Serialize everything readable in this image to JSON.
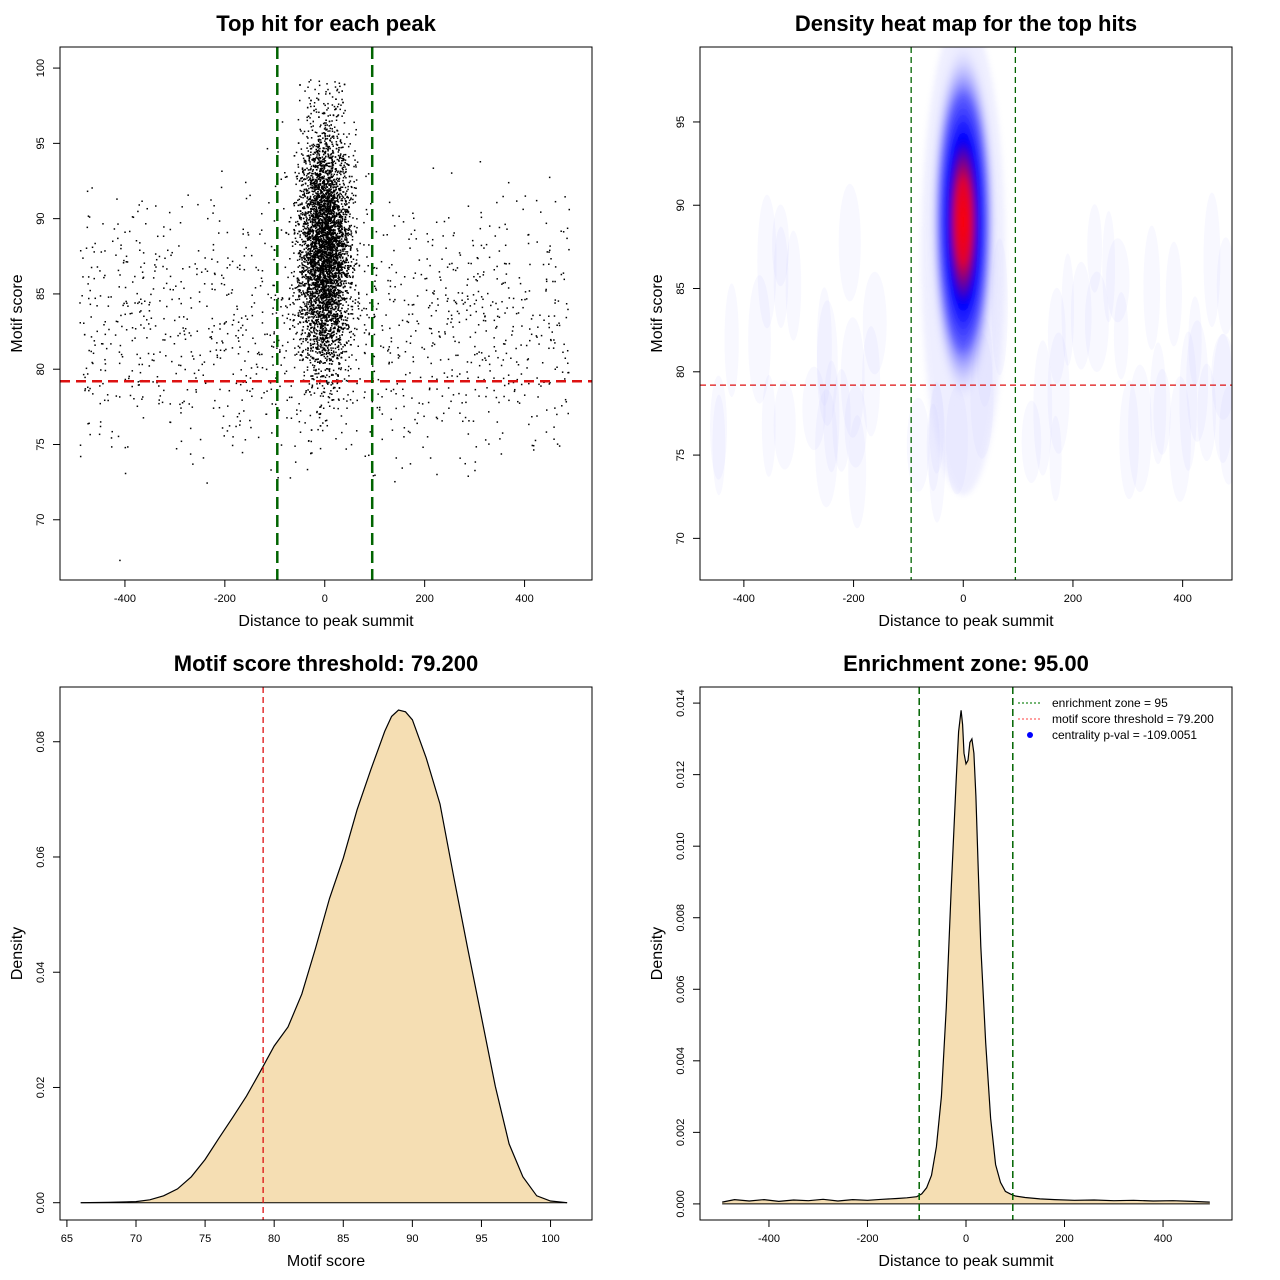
{
  "chart_data": [
    {
      "id": "scatter",
      "type": "scatter",
      "title": "Top hit for each peak",
      "xlabel": "Distance to peak summit",
      "ylabel": "Motif score",
      "xlim": [
        -530,
        535
      ],
      "ylim": [
        66,
        101.4
      ],
      "xticks": [
        -400,
        -200,
        0,
        200,
        400
      ],
      "yticks": [
        70,
        75,
        80,
        85,
        90,
        95,
        100
      ],
      "points_description": "dense cloud of top hits centred at distance 0 (sd ~25) with motif scores 73-99; sparse background hits spread uniformly across -490..490 with scores 67-97",
      "central_cluster": {
        "x_mean": 0,
        "x_sd": 25,
        "y_mean": 88,
        "y_sd": 4
      },
      "background": {
        "x_range": [
          -490,
          490
        ],
        "y_range": [
          70,
          96
        ]
      },
      "hline": {
        "y": 79.2,
        "color": "#dd1111"
      },
      "vlines": [
        {
          "x": -95,
          "color": "#006400"
        },
        {
          "x": 95,
          "color": "#006400"
        }
      ],
      "grid": false
    },
    {
      "id": "heatmap",
      "type": "heatmap",
      "title": "Density heat map for the top hits",
      "xlabel": "Distance to peak summit",
      "ylabel": "Motif score",
      "xlim": [
        -480,
        490
      ],
      "ylim": [
        67.5,
        99.5
      ],
      "xticks": [
        -400,
        -200,
        0,
        200,
        400
      ],
      "yticks": [
        70,
        75,
        80,
        85,
        90,
        95
      ],
      "density_peak": {
        "x": 0,
        "y": 89
      },
      "color_scale": [
        "#ffffff",
        "#0000ff",
        "#ff0000"
      ],
      "hline": {
        "y": 79.2,
        "color": "#dd1111"
      },
      "vlines": [
        {
          "x": -95,
          "color": "#006400"
        },
        {
          "x": 95,
          "color": "#006400"
        }
      ],
      "grid": false
    },
    {
      "id": "score_density",
      "type": "area",
      "title": "Motif score threshold: 79.200",
      "xlabel": "Motif score",
      "ylabel": "Density",
      "xlim": [
        64.5,
        103
      ],
      "ylim": [
        -0.003,
        0.0895
      ],
      "xticks": [
        65,
        70,
        75,
        80,
        85,
        90,
        95,
        100
      ],
      "yticks": [
        0.0,
        0.02,
        0.04,
        0.06,
        0.08
      ],
      "ytick_labels": [
        "0.00",
        "0.02",
        "0.04",
        "0.06",
        "0.08"
      ],
      "x": [
        66,
        68,
        70,
        71,
        72,
        73,
        74,
        75,
        76,
        77,
        78,
        79,
        80,
        81,
        82,
        83,
        84,
        85,
        86,
        87,
        88,
        88.5,
        89,
        89.5,
        90,
        91,
        92,
        93,
        94,
        95,
        96,
        97,
        98,
        99,
        100,
        101.2
      ],
      "y": [
        0.0,
        5e-05,
        0.0002,
        0.0005,
        0.0012,
        0.0024,
        0.0045,
        0.0075,
        0.0112,
        0.0148,
        0.0185,
        0.0228,
        0.0272,
        0.0305,
        0.0362,
        0.0442,
        0.0528,
        0.0598,
        0.0682,
        0.0752,
        0.0818,
        0.0844,
        0.0855,
        0.0852,
        0.0838,
        0.0772,
        0.0692,
        0.0565,
        0.0442,
        0.0322,
        0.0202,
        0.0102,
        0.0045,
        0.0012,
        0.0003,
        0.0
      ],
      "fill": "#f5deb3",
      "vline": {
        "x": 79.2,
        "color": "#dd1111"
      },
      "grid": false
    },
    {
      "id": "distance_density",
      "type": "area",
      "title": "Enrichment zone: 95.00",
      "xlabel": "Distance to peak summit",
      "ylabel": "Density",
      "xlim": [
        -540,
        540
      ],
      "ylim": [
        -0.00045,
        0.01445
      ],
      "xticks": [
        -400,
        -200,
        0,
        200,
        400
      ],
      "yticks": [
        0.0,
        0.002,
        0.004,
        0.006,
        0.008,
        0.01,
        0.012,
        0.014
      ],
      "ytick_labels": [
        "0.000",
        "0.002",
        "0.004",
        "0.006",
        "0.008",
        "0.010",
        "0.012",
        "0.014"
      ],
      "x": [
        -495,
        -470,
        -440,
        -410,
        -380,
        -350,
        -320,
        -290,
        -260,
        -230,
        -200,
        -170,
        -140,
        -120,
        -100,
        -90,
        -80,
        -70,
        -60,
        -50,
        -40,
        -30,
        -20,
        -15,
        -10,
        -7,
        -4,
        0,
        4,
        8,
        12,
        16,
        20,
        25,
        30,
        40,
        50,
        60,
        70,
        80,
        90,
        100,
        120,
        150,
        180,
        220,
        260,
        300,
        340,
        380,
        420,
        460,
        495
      ],
      "y": [
        5e-05,
        0.00012,
        8e-05,
        0.00012,
        7e-05,
        0.00011,
        9e-05,
        0.00013,
        8e-05,
        0.00012,
        0.0001,
        0.00013,
        0.00015,
        0.00017,
        0.0002,
        0.00028,
        0.00045,
        0.0008,
        0.0016,
        0.003,
        0.0055,
        0.0088,
        0.0118,
        0.0132,
        0.0138,
        0.0134,
        0.0126,
        0.0123,
        0.0124,
        0.0129,
        0.013,
        0.0126,
        0.0114,
        0.0093,
        0.0072,
        0.0045,
        0.0024,
        0.0011,
        0.0006,
        0.00035,
        0.00028,
        0.00022,
        0.00018,
        0.00014,
        0.00012,
        0.0001,
        0.00011,
        9e-05,
        0.0001,
        8e-05,
        9e-05,
        7e-05,
        5e-05
      ],
      "fill": "#f5deb3",
      "vlines": [
        {
          "x": -95,
          "color": "#006400"
        },
        {
          "x": 95,
          "color": "#006400"
        }
      ],
      "legend": {
        "position": "top-right",
        "entries": [
          {
            "label": "enrichment zone = 95",
            "color": "#228b22",
            "symbol": "dotted-line"
          },
          {
            "label": "motif score threshold = 79.200",
            "color": "#ff6666",
            "symbol": "dotted-line"
          },
          {
            "label": "centrality p-val = -109.0051",
            "color": "#0000ff",
            "symbol": "point"
          }
        ]
      },
      "grid": false
    }
  ]
}
